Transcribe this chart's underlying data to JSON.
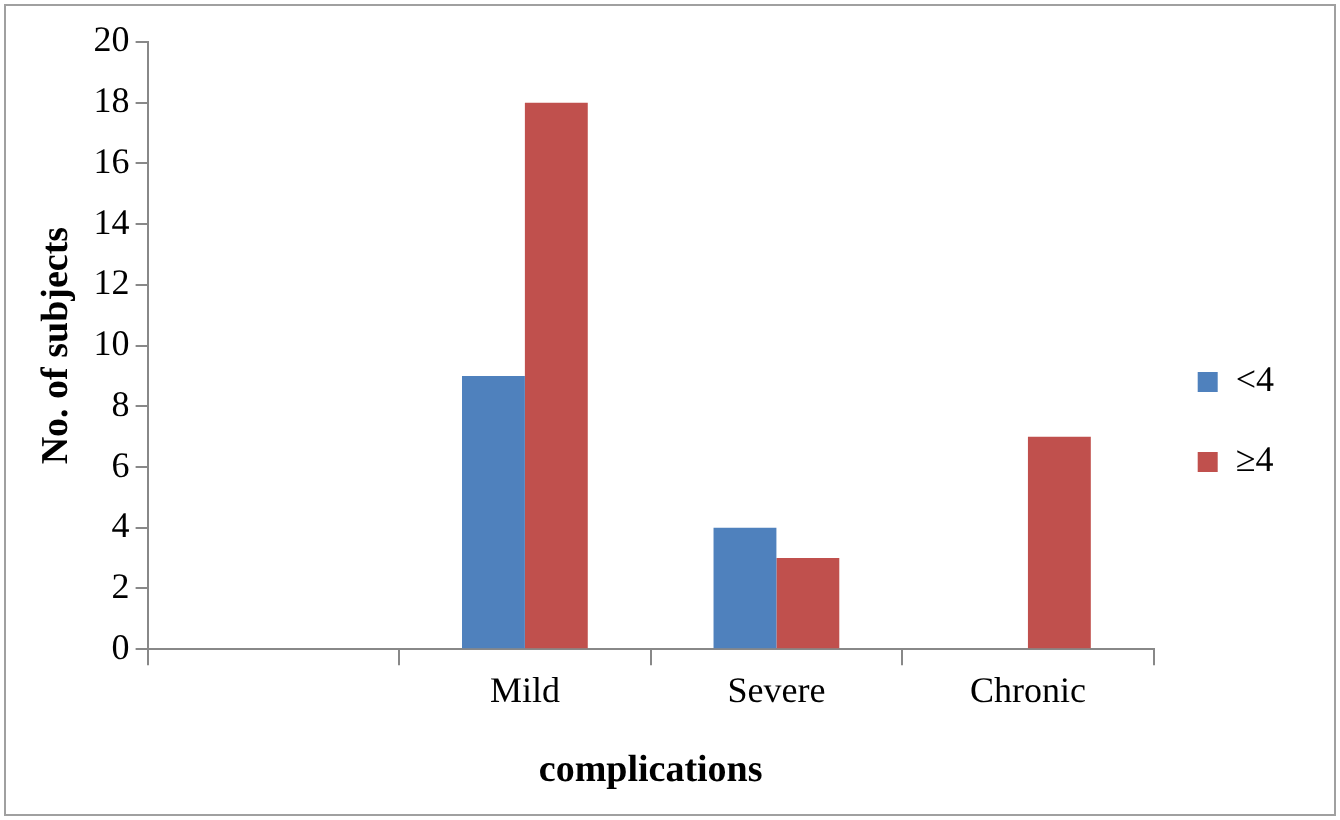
{
  "chart_data": {
    "type": "bar",
    "xlabel": "complications",
    "ylabel": "No. of subjects",
    "categories": [
      null,
      "Mild",
      "Severe",
      "Chronic"
    ],
    "series": [
      {
        "name": "<4",
        "color": "#4f81bd",
        "values": [
          null,
          9,
          4,
          0
        ]
      },
      {
        "name": "≥4",
        "color": "#c0504d",
        "values": [
          null,
          18,
          3,
          7
        ]
      }
    ],
    "ylim": [
      0,
      20
    ],
    "yticks": [
      0,
      2,
      4,
      6,
      8,
      10,
      12,
      14,
      16,
      18,
      20
    ],
    "grid": false,
    "legend": "right"
  }
}
